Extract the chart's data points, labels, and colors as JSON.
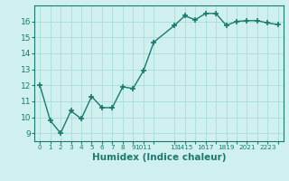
{
  "x": [
    0,
    1,
    2,
    3,
    4,
    5,
    6,
    7,
    8,
    9,
    10,
    11,
    13,
    14,
    15,
    16,
    17,
    18,
    19,
    20,
    21,
    22,
    23
  ],
  "y": [
    12.0,
    9.8,
    9.0,
    10.4,
    9.9,
    11.3,
    10.6,
    10.6,
    11.9,
    11.8,
    12.9,
    14.7,
    15.75,
    16.35,
    16.1,
    16.5,
    16.5,
    15.75,
    16.0,
    16.05,
    16.05,
    15.9,
    15.8
  ],
  "line_color": "#1a7a6e",
  "marker": "+",
  "marker_size": 4,
  "linewidth": 1.0,
  "bg_color": "#cff0ee",
  "grid_color": "#a8ddd8",
  "tick_color": "#1a7a6e",
  "xlabel": "Humidex (Indice chaleur)",
  "xlabel_fontsize": 7.5,
  "ylim": [
    8.5,
    17.0
  ],
  "yticks": [
    9,
    10,
    11,
    12,
    13,
    14,
    15,
    16
  ],
  "xtick_positions": [
    0,
    1,
    2,
    3,
    4,
    5,
    6,
    7,
    8,
    9,
    10,
    11,
    13,
    14,
    15,
    16,
    17,
    18,
    19,
    20,
    21,
    22,
    23
  ],
  "xtick_labels": [
    "0",
    "1",
    "2",
    "3",
    "4",
    "5",
    "6",
    "7",
    "8",
    "9",
    "1011",
    "",
    "13",
    "1415",
    "",
    "1617",
    "",
    "1819",
    "",
    "2021",
    "",
    "2223",
    ""
  ],
  "xlim": [
    -0.5,
    23.5
  ]
}
